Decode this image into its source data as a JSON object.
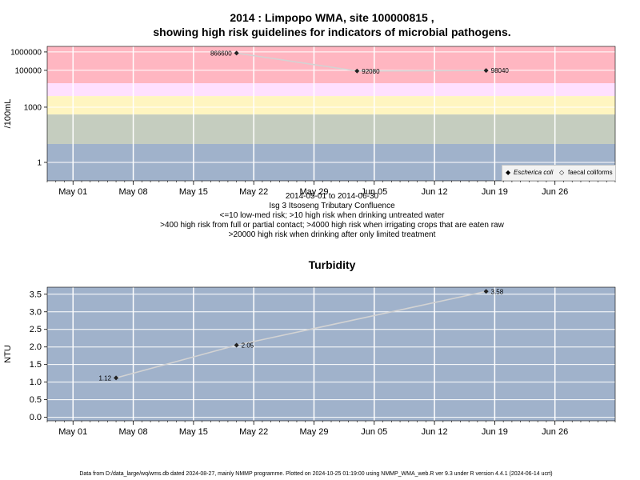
{
  "title": {
    "line1": "2014 : Limpopo WMA, site 100000815 ,",
    "line2": "showing high risk guidelines for indicators of microbial pathogens."
  },
  "caption": [
    "2014-05-01 to 2014-06-30",
    "Isg 3 Itsoseng Tributary Confluence",
    "<=10 low-med risk; >10 high risk when drinking untreated water",
    ">400 high risk from full or partial contact; >4000 high risk when irrigating crops that are eaten raw",
    ">20000 high risk when drinking after only limited treatment"
  ],
  "footer": "Data from D:/data_large/wq/wms.db dated 2024-08-27, mainly NMMP programme. Plotted on 2024-10-25 01:19:00 using NMMP_WMA_web.R ver 9.3 under R version 4.4.1 (2024-06-14 ucrt)",
  "colors": {
    "band_red": "#ffb6c1",
    "band_pink": "#ffe0ff",
    "band_yellow": "#fff5c0",
    "band_green": "#c5cdbf",
    "band_blue": "#a0b2cb",
    "turbidity_bg": "#a0b2cb",
    "gridline": "#ffffff",
    "series_line": "#d3d3d3",
    "marker": "#222222"
  },
  "chart_data": [
    {
      "type": "line",
      "title": "",
      "xlabel": "",
      "ylabel": "/100mL",
      "y_scale": "log",
      "ylim": [
        0.1,
        2000000
      ],
      "x_ticks": [
        "May 01",
        "May 08",
        "May 15",
        "May 22",
        "May 29",
        "Jun 05",
        "Jun 12",
        "Jun 19",
        "Jun 26"
      ],
      "x_tick_dates": [
        "2014-05-01",
        "2014-05-08",
        "2014-05-15",
        "2014-05-22",
        "2014-05-29",
        "2014-06-05",
        "2014-06-12",
        "2014-06-19",
        "2014-06-26"
      ],
      "xlim": [
        "2014-04-28",
        "2014-07-03"
      ],
      "y_ticks": [
        {
          "value": 1,
          "label": "1"
        },
        {
          "value": 1000,
          "label": "1000"
        },
        {
          "value": 100000,
          "label": "100000"
        },
        {
          "value": 1000000,
          "label": "1000000"
        }
      ],
      "guideline_bands": [
        {
          "from": 20000,
          "to": 2000000,
          "color": "#ffb6c1"
        },
        {
          "from": 4000,
          "to": 20000,
          "color": "#ffe0ff"
        },
        {
          "from": 400,
          "to": 4000,
          "color": "#fff5c0"
        },
        {
          "from": 10,
          "to": 400,
          "color": "#c5cdbf"
        },
        {
          "from": 0.1,
          "to": 10,
          "color": "#a0b2cb"
        }
      ],
      "series": [
        {
          "name": "Escherica coli",
          "marker": "filled-diamond",
          "points": [
            {
              "date": "2014-05-20",
              "value": 866600,
              "label": "866600"
            },
            {
              "date": "2014-06-03",
              "value": 92080,
              "label": "92080"
            },
            {
              "date": "2014-06-18",
              "value": 98040,
              "label": "98040"
            }
          ]
        }
      ],
      "legend": {
        "position": "bottom-right",
        "entries": [
          {
            "label": "Escherica coli",
            "marker": "filled-diamond"
          },
          {
            "label": "faecal coliforms",
            "marker": "open-diamond"
          }
        ]
      },
      "grid": true
    },
    {
      "type": "line",
      "title": "Turbidity",
      "xlabel": "",
      "ylabel": "NTU",
      "ylim": [
        -0.1,
        3.7
      ],
      "x_ticks": [
        "May 01",
        "May 08",
        "May 15",
        "May 22",
        "May 29",
        "Jun 05",
        "Jun 12",
        "Jun 19",
        "Jun 26"
      ],
      "x_tick_dates": [
        "2014-05-01",
        "2014-05-08",
        "2014-05-15",
        "2014-05-22",
        "2014-05-29",
        "2014-06-05",
        "2014-06-12",
        "2014-06-19",
        "2014-06-26"
      ],
      "xlim": [
        "2014-04-28",
        "2014-07-03"
      ],
      "y_ticks": [
        {
          "value": 0.0,
          "label": "0.0"
        },
        {
          "value": 0.5,
          "label": "0.5"
        },
        {
          "value": 1.0,
          "label": "1.0"
        },
        {
          "value": 1.5,
          "label": "1.5"
        },
        {
          "value": 2.0,
          "label": "2.0"
        },
        {
          "value": 2.5,
          "label": "2.5"
        },
        {
          "value": 3.0,
          "label": "3.0"
        },
        {
          "value": 3.5,
          "label": "3.5"
        }
      ],
      "series": [
        {
          "name": "",
          "marker": "filled-diamond",
          "points": [
            {
              "date": "2014-05-06",
              "value": 1.12,
              "label": "1.12"
            },
            {
              "date": "2014-05-20",
              "value": 2.05,
              "label": "2.05"
            },
            {
              "date": "2014-06-18",
              "value": 3.58,
              "label": "3.58"
            }
          ]
        }
      ],
      "grid": true
    }
  ]
}
